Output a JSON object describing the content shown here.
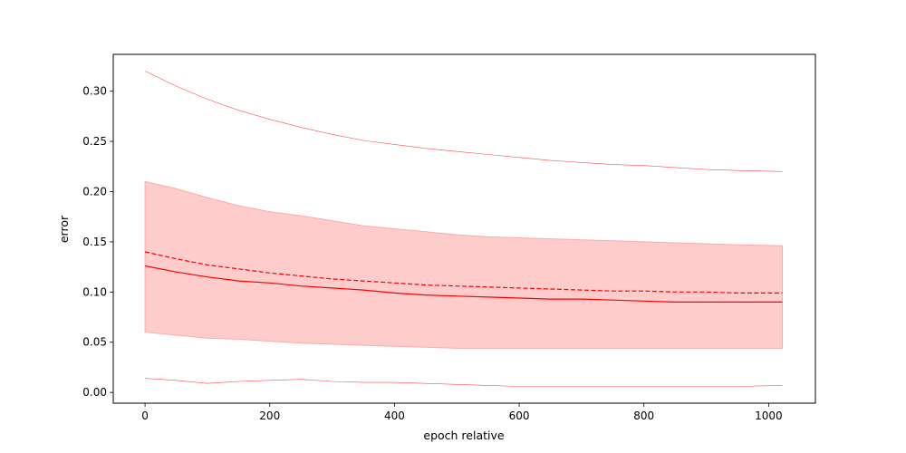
{
  "chart_data": {
    "type": "line",
    "title": "",
    "xlabel": "epoch relative",
    "ylabel": "error",
    "xlim": [
      -51,
      1075
    ],
    "ylim": [
      -0.0107,
      0.3367
    ],
    "xticks": [
      0,
      200,
      400,
      600,
      800,
      1000
    ],
    "xtick_labels": [
      "0",
      "200",
      "400",
      "600",
      "800",
      "1000"
    ],
    "yticks": [
      0.0,
      0.05,
      0.1,
      0.15,
      0.2,
      0.25,
      0.3
    ],
    "ytick_labels": [
      "0.00",
      "0.05",
      "0.10",
      "0.15",
      "0.20",
      "0.25",
      "0.30"
    ],
    "grid": false,
    "legend": "none",
    "color": "#ff0000",
    "band_color": "#ffcccc",
    "x": [
      0,
      50,
      100,
      150,
      200,
      250,
      300,
      350,
      400,
      450,
      500,
      550,
      600,
      650,
      700,
      750,
      800,
      850,
      900,
      950,
      1022
    ],
    "series": [
      {
        "role": "median",
        "style": "solid",
        "values": [
          0.126,
          0.12,
          0.115,
          0.111,
          0.109,
          0.106,
          0.104,
          0.102,
          0.099,
          0.097,
          0.096,
          0.095,
          0.094,
          0.093,
          0.093,
          0.092,
          0.091,
          0.09,
          0.09,
          0.09,
          0.09
        ]
      },
      {
        "role": "mean",
        "style": "dashed",
        "values": [
          0.14,
          0.133,
          0.127,
          0.123,
          0.119,
          0.116,
          0.113,
          0.111,
          0.109,
          0.107,
          0.106,
          0.105,
          0.104,
          0.103,
          0.102,
          0.101,
          0.101,
          0.1,
          0.1,
          0.099,
          0.099
        ]
      },
      {
        "role": "band_upper",
        "style": "fill",
        "values": [
          0.21,
          0.203,
          0.194,
          0.186,
          0.18,
          0.176,
          0.171,
          0.166,
          0.163,
          0.16,
          0.157,
          0.155,
          0.154,
          0.153,
          0.152,
          0.151,
          0.15,
          0.149,
          0.148,
          0.147,
          0.146
        ]
      },
      {
        "role": "band_lower",
        "style": "fill",
        "values": [
          0.06,
          0.057,
          0.054,
          0.053,
          0.051,
          0.049,
          0.048,
          0.047,
          0.046,
          0.045,
          0.044,
          0.044,
          0.044,
          0.044,
          0.044,
          0.044,
          0.044,
          0.044,
          0.044,
          0.044,
          0.044
        ]
      },
      {
        "role": "max",
        "style": "thin",
        "values": [
          0.32,
          0.305,
          0.292,
          0.281,
          0.272,
          0.264,
          0.257,
          0.251,
          0.247,
          0.243,
          0.24,
          0.237,
          0.234,
          0.231,
          0.229,
          0.227,
          0.226,
          0.224,
          0.222,
          0.221,
          0.22
        ]
      },
      {
        "role": "min",
        "style": "thin",
        "values": [
          0.014,
          0.012,
          0.009,
          0.011,
          0.012,
          0.013,
          0.011,
          0.01,
          0.01,
          0.009,
          0.008,
          0.007,
          0.006,
          0.006,
          0.006,
          0.006,
          0.006,
          0.006,
          0.006,
          0.006,
          0.007
        ]
      }
    ]
  }
}
